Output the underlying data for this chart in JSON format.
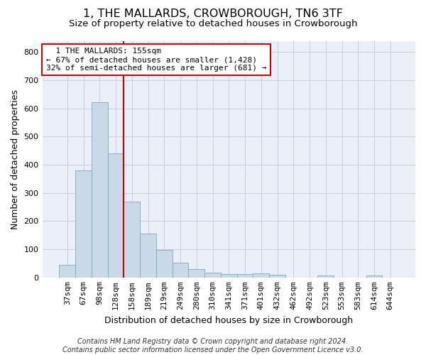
{
  "title": "1, THE MALLARDS, CROWBOROUGH, TN6 3TF",
  "subtitle": "Size of property relative to detached houses in Crowborough",
  "xlabel": "Distribution of detached houses by size in Crowborough",
  "ylabel": "Number of detached properties",
  "categories": [
    "37sqm",
    "67sqm",
    "98sqm",
    "128sqm",
    "158sqm",
    "189sqm",
    "219sqm",
    "249sqm",
    "280sqm",
    "310sqm",
    "341sqm",
    "371sqm",
    "401sqm",
    "432sqm",
    "462sqm",
    "492sqm",
    "523sqm",
    "553sqm",
    "583sqm",
    "614sqm",
    "644sqm"
  ],
  "values": [
    46,
    381,
    623,
    440,
    270,
    155,
    97,
    52,
    29,
    17,
    12,
    12,
    14,
    9,
    0,
    0,
    8,
    0,
    0,
    8,
    0
  ],
  "bar_color": "#c9d9e8",
  "bar_edgecolor": "#7aaabb",
  "grid_color": "#ccccdd",
  "background_color": "#eaeff8",
  "vline_x_index": 4,
  "vline_color": "#cc0000",
  "annotation_line1": "  1 THE MALLARDS: 155sqm",
  "annotation_line2": "← 67% of detached houses are smaller (1,428)",
  "annotation_line3": "32% of semi-detached houses are larger (681) →",
  "annotation_box_color": "#cc0000",
  "ylim": [
    0,
    840
  ],
  "yticks": [
    0,
    100,
    200,
    300,
    400,
    500,
    600,
    700,
    800
  ],
  "footer": "Contains HM Land Registry data © Crown copyright and database right 2024.\nContains public sector information licensed under the Open Government Licence v3.0.",
  "title_fontsize": 11.5,
  "subtitle_fontsize": 9.5,
  "ylabel_fontsize": 9,
  "xlabel_fontsize": 9,
  "footer_fontsize": 7,
  "tick_fontsize": 8,
  "annot_fontsize": 8
}
